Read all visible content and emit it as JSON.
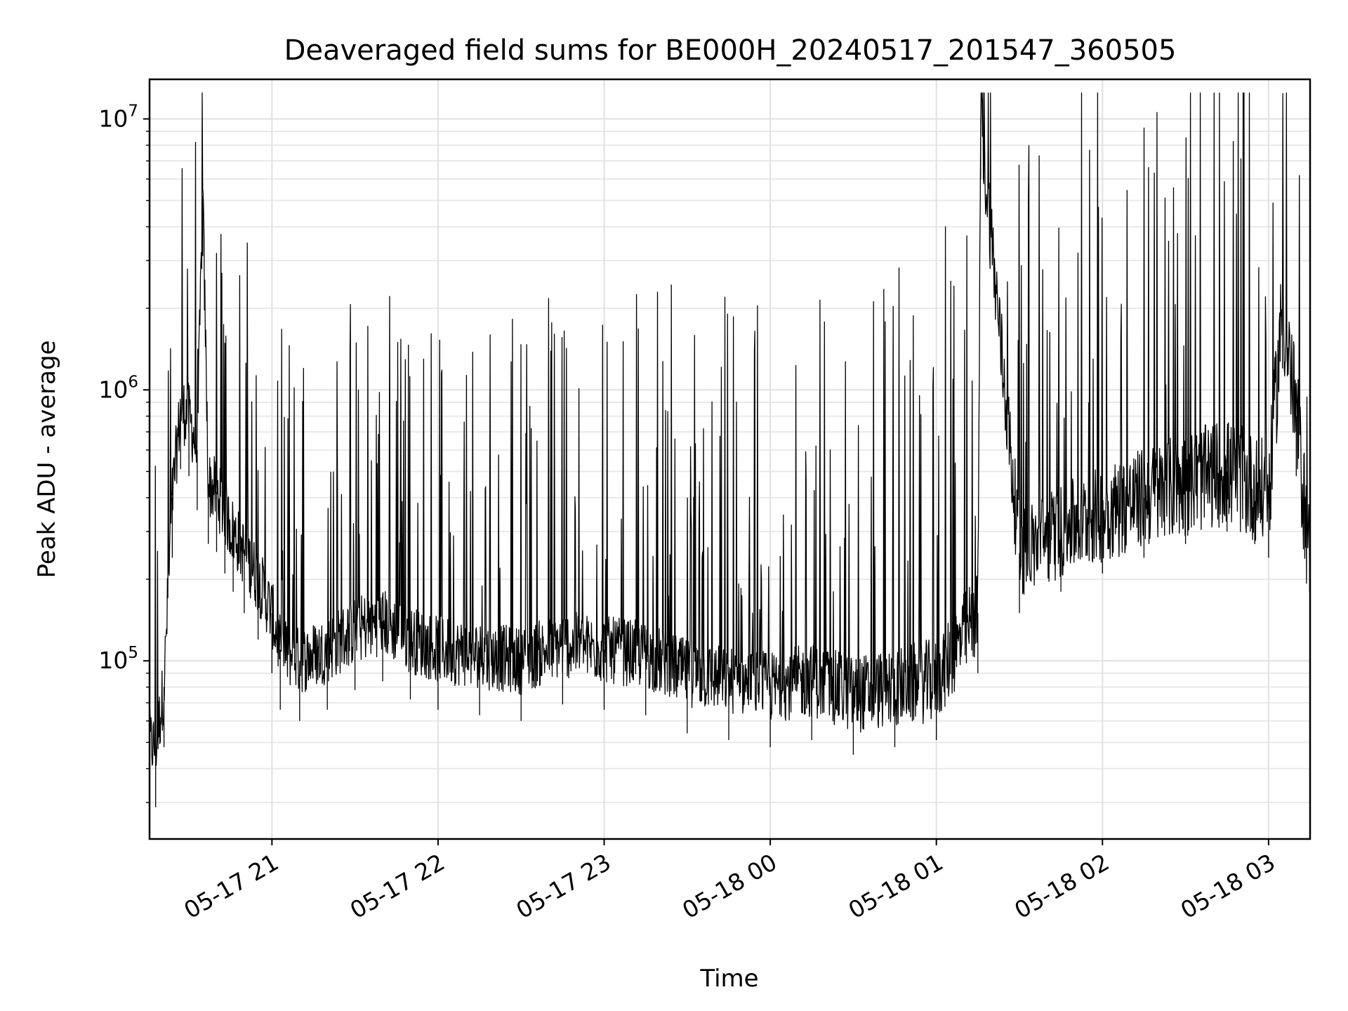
{
  "chart_data": {
    "type": "line",
    "title": "Deaveraged field sums for BE000H_20240517_201547_360505",
    "xlabel": "Time",
    "ylabel": "Peak ADU - average",
    "yscale": "log",
    "ylim": [
      22000,
      14000000
    ],
    "xlim": [
      "2024-05-17 20:15:47",
      "2024-05-18 03:15:00"
    ],
    "grid": true,
    "line_color": "#000000",
    "x_ticks": [
      {
        "value": "2024-05-17 21:00",
        "label": "05-17 21"
      },
      {
        "value": "2024-05-17 22:00",
        "label": "05-17 22"
      },
      {
        "value": "2024-05-17 23:00",
        "label": "05-17 23"
      },
      {
        "value": "2024-05-18 00:00",
        "label": "05-18 00"
      },
      {
        "value": "2024-05-18 01:00",
        "label": "05-18 01"
      },
      {
        "value": "2024-05-18 02:00",
        "label": "05-18 02"
      },
      {
        "value": "2024-05-18 03:00",
        "label": "05-18 03"
      }
    ],
    "y_ticks": [
      {
        "value": 100000,
        "base": "10",
        "exp": "5"
      },
      {
        "value": 1000000,
        "base": "10",
        "exp": "6"
      },
      {
        "value": 10000000,
        "base": "10",
        "exp": "7"
      }
    ],
    "series": [
      {
        "x": [
          "2024-05-17 20:15:47",
          "2024-05-17 20:18",
          "2024-05-17 20:21",
          "2024-05-17 20:24",
          "2024-05-17 20:27",
          "2024-05-17 20:30",
          "2024-05-17 20:33",
          "2024-05-17 20:35",
          "2024-05-17 20:37",
          "2024-05-17 20:40",
          "2024-05-17 20:43",
          "2024-05-17 20:46",
          "2024-05-17 20:50",
          "2024-05-17 20:55",
          "2024-05-17 21:00",
          "2024-05-17 21:03",
          "2024-05-17 21:10",
          "2024-05-17 21:20",
          "2024-05-17 21:30",
          "2024-05-17 21:40",
          "2024-05-17 21:50",
          "2024-05-17 22:00",
          "2024-05-17 22:15",
          "2024-05-17 22:30",
          "2024-05-17 22:45",
          "2024-05-17 23:00",
          "2024-05-17 23:15",
          "2024-05-17 23:30",
          "2024-05-17 23:45",
          "2024-05-18 00:00",
          "2024-05-18 00:15",
          "2024-05-18 00:30",
          "2024-05-18 00:45",
          "2024-05-18 01:00",
          "2024-05-18 01:15",
          "2024-05-18 01:16",
          "2024-05-18 01:30",
          "2024-05-18 01:45",
          "2024-05-18 02:00",
          "2024-05-18 02:15",
          "2024-05-18 02:30",
          "2024-05-18 02:45",
          "2024-05-18 03:00",
          "2024-05-18 03:05",
          "2024-05-18 03:10",
          "2024-05-18 03:15"
        ],
        "y": [
          50000,
          48000,
          80000,
          400000,
          850000,
          800000,
          600000,
          5200000,
          450000,
          420000,
          350000,
          300000,
          250000,
          200000,
          150000,
          110000,
          100000,
          110000,
          130000,
          140000,
          120000,
          110000,
          105000,
          100000,
          115000,
          110000,
          105000,
          90000,
          85000,
          80000,
          85000,
          75000,
          80000,
          85000,
          150000,
          10000000,
          250000,
          300000,
          350000,
          400000,
          450000,
          500000,
          400000,
          2000000,
          800000,
          220000
        ]
      }
    ]
  }
}
